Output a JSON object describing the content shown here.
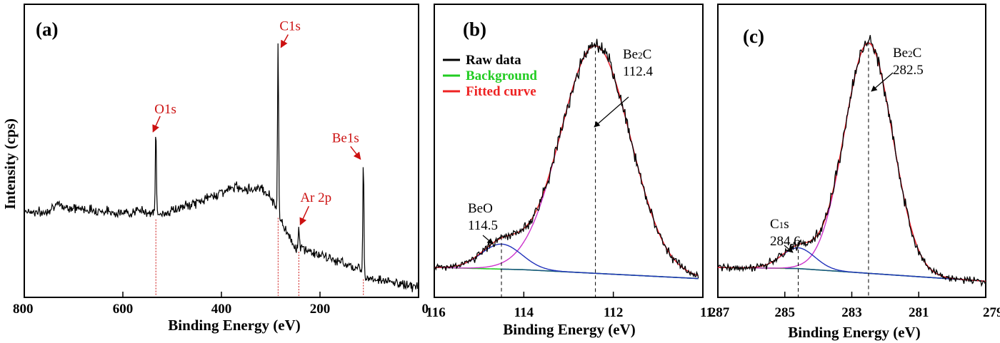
{
  "colors": {
    "raw": "#000000",
    "background": "#22cc22",
    "fitted": "#ee2222",
    "component_main": "#cc33cc",
    "component_minor": "#2233bb",
    "envelope_baseline": "#1a4a8c",
    "peak_label": "#cc1111"
  },
  "chart_data": [
    {
      "type": "line",
      "panel_label": "(a)",
      "xlabel": "Binding Energy (eV)",
      "ylabel": "Intensity (cps)",
      "xlim": [
        800,
        0
      ],
      "xticks": [
        "800",
        "600",
        "400",
        "200",
        "0"
      ],
      "x_reversed": true,
      "series": [
        {
          "role": "survey",
          "points": [
            [
              800,
              0.31
            ],
            [
              760,
              0.3
            ],
            [
              740,
              0.33
            ],
            [
              700,
              0.32
            ],
            [
              650,
              0.31
            ],
            [
              600,
              0.3
            ],
            [
              560,
              0.31
            ],
            [
              540,
              0.3
            ],
            [
              533,
              0.63
            ],
            [
              530,
              0.29
            ],
            [
              500,
              0.31
            ],
            [
              450,
              0.34
            ],
            [
              400,
              0.38
            ],
            [
              370,
              0.4
            ],
            [
              340,
              0.39
            ],
            [
              320,
              0.4
            ],
            [
              300,
              0.36
            ],
            [
              290,
              0.33
            ],
            [
              285,
              0.95
            ],
            [
              282,
              0.28
            ],
            [
              270,
              0.24
            ],
            [
              250,
              0.17
            ],
            [
              243,
              0.24
            ],
            [
              240,
              0.17
            ],
            [
              200,
              0.14
            ],
            [
              150,
              0.11
            ],
            [
              120,
              0.09
            ],
            [
              112,
              0.51
            ],
            [
              110,
              0.06
            ],
            [
              60,
              0.04
            ],
            [
              0,
              0.02
            ]
          ]
        }
      ],
      "peaks": [
        {
          "name": "O1s",
          "x": 533
        },
        {
          "name": "C1s",
          "x": 285
        },
        {
          "name": "Ar 2p",
          "x": 243
        },
        {
          "name": "Be1s",
          "x": 112
        }
      ]
    },
    {
      "type": "line",
      "panel_label": "(b)",
      "xlabel": "Binding Energy (eV)",
      "xlim": [
        116,
        110
      ],
      "xticks": [
        "116",
        "114",
        "112",
        "11"
      ],
      "x_reversed": true,
      "legend": [
        "Raw data",
        "Background",
        "Fitted curve"
      ],
      "legend_position": "top-left",
      "background_line": {
        "x_start": 116,
        "y_start": 0.0,
        "x_mid": 114,
        "y_mid": -0.01,
        "x_end": 110,
        "y_end": -0.05
      },
      "components": [
        {
          "label": "BeO",
          "center": 114.5,
          "amplitude": 0.11,
          "width": 0.45
        },
        {
          "label": "Be2C",
          "center": 112.4,
          "amplitude": 1.0,
          "width": 0.78
        }
      ],
      "annotations": [
        {
          "label": "BeO",
          "value": "114.5"
        },
        {
          "label": "Be2C",
          "value": "112.4"
        }
      ]
    },
    {
      "type": "line",
      "panel_label": "(c)",
      "xlabel": "Binding Energy (eV)",
      "xlim": [
        287,
        279
      ],
      "xticks": [
        "287",
        "285",
        "283",
        "281",
        "279"
      ],
      "x_reversed": true,
      "background_line": {
        "x_start": 287,
        "y_start": 0.0,
        "x_mid": 284.6,
        "y_mid": -0.005,
        "x_end": 279,
        "y_end": -0.06
      },
      "components": [
        {
          "label": "C1s",
          "center": 284.6,
          "amplitude": 0.09,
          "width": 0.5
        },
        {
          "label": "Be2C",
          "center": 282.5,
          "amplitude": 1.0,
          "width": 0.72
        }
      ],
      "annotations": [
        {
          "label": "C1s",
          "value": "284.6"
        },
        {
          "label": "Be2C",
          "value": "282.5"
        }
      ]
    }
  ]
}
